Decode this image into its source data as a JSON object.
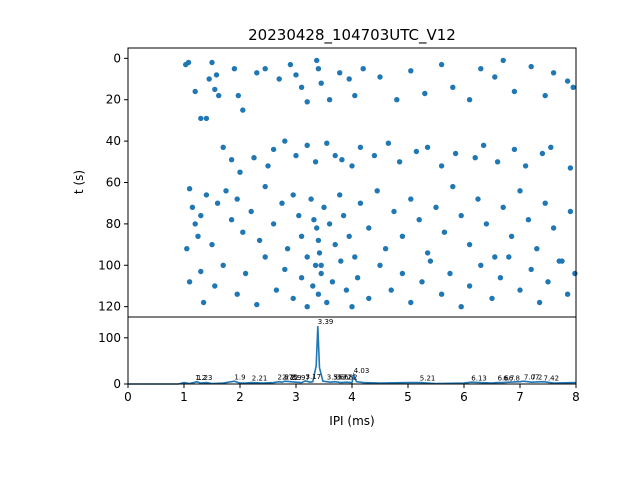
{
  "title": "20230428_104703UTC_V12",
  "accent_color": "#1f77b4",
  "chart_data": [
    {
      "type": "scatter",
      "title": "20230428_104703UTC_V12",
      "xlabel": "",
      "ylabel": "t (s)",
      "xlim": [
        0,
        8
      ],
      "ylim": [
        125,
        -5
      ],
      "y_inverted": true,
      "yticks": [
        "0",
        "20",
        "40",
        "60",
        "80",
        "100",
        "120"
      ],
      "grid": false,
      "points": [
        [
          1.03,
          3
        ],
        [
          1.08,
          2
        ],
        [
          1.2,
          16
        ],
        [
          1.3,
          29
        ],
        [
          1.4,
          29
        ],
        [
          1.45,
          10
        ],
        [
          1.5,
          2
        ],
        [
          1.55,
          15
        ],
        [
          1.58,
          8
        ],
        [
          1.62,
          18
        ],
        [
          1.9,
          5
        ],
        [
          1.97,
          18
        ],
        [
          2.05,
          25
        ],
        [
          2.3,
          7
        ],
        [
          2.45,
          5
        ],
        [
          2.7,
          10
        ],
        [
          2.9,
          3
        ],
        [
          3.0,
          8
        ],
        [
          3.1,
          14
        ],
        [
          3.2,
          21
        ],
        [
          3.37,
          1
        ],
        [
          3.4,
          5
        ],
        [
          3.45,
          12
        ],
        [
          3.6,
          20
        ],
        [
          3.78,
          7
        ],
        [
          3.95,
          10
        ],
        [
          4.05,
          18
        ],
        [
          4.2,
          5
        ],
        [
          4.5,
          9
        ],
        [
          4.8,
          20
        ],
        [
          5.05,
          6
        ],
        [
          5.3,
          17
        ],
        [
          5.6,
          3
        ],
        [
          5.8,
          14
        ],
        [
          6.1,
          20
        ],
        [
          6.3,
          5
        ],
        [
          6.55,
          9
        ],
        [
          6.7,
          1
        ],
        [
          6.9,
          16
        ],
        [
          7.2,
          4
        ],
        [
          7.45,
          18
        ],
        [
          7.6,
          7
        ],
        [
          7.85,
          11
        ],
        [
          7.95,
          14
        ],
        [
          1.7,
          43
        ],
        [
          1.85,
          49
        ],
        [
          2.0,
          55
        ],
        [
          2.25,
          48
        ],
        [
          2.5,
          52
        ],
        [
          2.6,
          44
        ],
        [
          2.8,
          40
        ],
        [
          3.0,
          47
        ],
        [
          3.2,
          42
        ],
        [
          3.35,
          50
        ],
        [
          3.55,
          41
        ],
        [
          3.7,
          47
        ],
        [
          3.82,
          49
        ],
        [
          4.0,
          52
        ],
        [
          4.15,
          43
        ],
        [
          4.4,
          47
        ],
        [
          4.65,
          41
        ],
        [
          4.85,
          50
        ],
        [
          5.15,
          45
        ],
        [
          5.35,
          43
        ],
        [
          5.6,
          52
        ],
        [
          5.85,
          46
        ],
        [
          6.2,
          48
        ],
        [
          6.35,
          42
        ],
        [
          6.6,
          50
        ],
        [
          6.9,
          44
        ],
        [
          7.1,
          52
        ],
        [
          7.4,
          46
        ],
        [
          7.55,
          43
        ],
        [
          7.9,
          53
        ],
        [
          1.1,
          63
        ],
        [
          1.15,
          72
        ],
        [
          1.2,
          80
        ],
        [
          1.25,
          86
        ],
        [
          1.3,
          76
        ],
        [
          1.4,
          66
        ],
        [
          1.5,
          90
        ],
        [
          1.6,
          70
        ],
        [
          1.75,
          64
        ],
        [
          1.85,
          78
        ],
        [
          1.95,
          68
        ],
        [
          2.05,
          84
        ],
        [
          2.2,
          74
        ],
        [
          2.35,
          88
        ],
        [
          2.45,
          62
        ],
        [
          2.6,
          80
        ],
        [
          2.75,
          70
        ],
        [
          2.85,
          92
        ],
        [
          2.95,
          66
        ],
        [
          3.05,
          76
        ],
        [
          3.1,
          86
        ],
        [
          3.2,
          96
        ],
        [
          3.27,
          68
        ],
        [
          3.32,
          78
        ],
        [
          3.37,
          82
        ],
        [
          3.4,
          88
        ],
        [
          3.42,
          94
        ],
        [
          3.45,
          100
        ],
        [
          3.5,
          72
        ],
        [
          3.6,
          80
        ],
        [
          3.7,
          90
        ],
        [
          3.78,
          66
        ],
        [
          3.85,
          76
        ],
        [
          3.95,
          86
        ],
        [
          4.05,
          96
        ],
        [
          4.15,
          70
        ],
        [
          4.3,
          82
        ],
        [
          4.45,
          64
        ],
        [
          4.6,
          92
        ],
        [
          4.75,
          74
        ],
        [
          4.9,
          86
        ],
        [
          5.05,
          68
        ],
        [
          5.2,
          78
        ],
        [
          5.35,
          94
        ],
        [
          5.5,
          72
        ],
        [
          5.65,
          84
        ],
        [
          5.8,
          62
        ],
        [
          5.95,
          76
        ],
        [
          6.1,
          90
        ],
        [
          6.25,
          68
        ],
        [
          6.4,
          80
        ],
        [
          6.55,
          96
        ],
        [
          6.7,
          72
        ],
        [
          6.85,
          86
        ],
        [
          7.0,
          64
        ],
        [
          7.15,
          78
        ],
        [
          7.3,
          92
        ],
        [
          7.45,
          70
        ],
        [
          7.6,
          82
        ],
        [
          7.75,
          98
        ],
        [
          7.9,
          74
        ],
        [
          1.05,
          92
        ],
        [
          1.1,
          108
        ],
        [
          1.3,
          103
        ],
        [
          1.35,
          118
        ],
        [
          1.55,
          110
        ],
        [
          1.7,
          100
        ],
        [
          1.95,
          114
        ],
        [
          2.1,
          104
        ],
        [
          2.3,
          119
        ],
        [
          2.45,
          96
        ],
        [
          2.65,
          112
        ],
        [
          2.8,
          102
        ],
        [
          2.95,
          116
        ],
        [
          3.1,
          106
        ],
        [
          3.2,
          120
        ],
        [
          3.3,
          110
        ],
        [
          3.35,
          100
        ],
        [
          3.4,
          114
        ],
        [
          3.45,
          104
        ],
        [
          3.55,
          118
        ],
        [
          3.65,
          108
        ],
        [
          3.8,
          98
        ],
        [
          3.9,
          112
        ],
        [
          4.0,
          120
        ],
        [
          4.1,
          106
        ],
        [
          4.3,
          116
        ],
        [
          4.5,
          100
        ],
        [
          4.7,
          112
        ],
        [
          4.9,
          104
        ],
        [
          5.05,
          118
        ],
        [
          5.25,
          108
        ],
        [
          5.4,
          98
        ],
        [
          5.6,
          114
        ],
        [
          5.75,
          104
        ],
        [
          5.95,
          120
        ],
        [
          6.1,
          110
        ],
        [
          6.3,
          100
        ],
        [
          6.5,
          116
        ],
        [
          6.65,
          106
        ],
        [
          6.8,
          96
        ],
        [
          7.0,
          112
        ],
        [
          7.2,
          102
        ],
        [
          7.35,
          118
        ],
        [
          7.5,
          108
        ],
        [
          7.7,
          98
        ],
        [
          7.85,
          114
        ],
        [
          7.98,
          104
        ]
      ]
    },
    {
      "type": "line",
      "xlabel": "IPI (ms)",
      "ylabel": "",
      "xlim": [
        0,
        8
      ],
      "ylim": [
        0,
        145
      ],
      "xticks": [
        "0",
        "1",
        "2",
        "3",
        "4",
        "5",
        "6",
        "7",
        "8"
      ],
      "yticks": [
        "0",
        "100"
      ],
      "x": [
        0,
        0.9,
        1.0,
        1.1,
        1.2,
        1.23,
        1.3,
        1.4,
        1.5,
        1.7,
        1.9,
        2.0,
        2.1,
        2.21,
        2.4,
        2.6,
        2.7,
        2.75,
        2.8,
        2.9,
        3.0,
        3.1,
        3.17,
        3.25,
        3.3,
        3.36,
        3.39,
        3.42,
        3.48,
        3.55,
        3.62,
        3.7,
        3.8,
        3.9,
        4.0,
        4.03,
        4.08,
        4.2,
        4.5,
        5.0,
        5.21,
        5.5,
        6.0,
        6.13,
        6.5,
        6.6,
        6.7,
        6.8,
        7.0,
        7.07,
        7.2,
        7.42,
        7.6,
        8.0
      ],
      "y": [
        0,
        0,
        3,
        1,
        4,
        5,
        2,
        3,
        1,
        2,
        6,
        2,
        2,
        3,
        2,
        3,
        5,
        4,
        6,
        5,
        4,
        3,
        7,
        4,
        5,
        40,
        125,
        35,
        6,
        5,
        4,
        5,
        3,
        4,
        3,
        20,
        5,
        3,
        2,
        3,
        3,
        1,
        2,
        4,
        2,
        3,
        3,
        4,
        5,
        6,
        4,
        5,
        2,
        3
      ],
      "annotations": [
        {
          "label": "1.2",
          "x": 1.2,
          "y": 4
        },
        {
          "label": "1.23",
          "x": 1.23,
          "y": 4
        },
        {
          "label": "1.9",
          "x": 1.9,
          "y": 5
        },
        {
          "label": "2.21",
          "x": 2.21,
          "y": 3
        },
        {
          "label": "2.67",
          "x": 2.67,
          "y": 5
        },
        {
          "label": "2.75",
          "x": 2.75,
          "y": 5
        },
        {
          "label": "2.8",
          "x": 2.8,
          "y": 5
        },
        {
          "label": "2.9",
          "x": 2.9,
          "y": 4
        },
        {
          "label": "2.97",
          "x": 2.97,
          "y": 4
        },
        {
          "label": "3.17",
          "x": 3.17,
          "y": 7
        },
        {
          "label": "3.39",
          "x": 3.39,
          "y": 125
        },
        {
          "label": "3.55",
          "x": 3.55,
          "y": 5
        },
        {
          "label": "3.66",
          "x": 3.66,
          "y": 5
        },
        {
          "label": "3.72",
          "x": 3.72,
          "y": 5
        },
        {
          "label": "3.82",
          "x": 3.82,
          "y": 5
        },
        {
          "label": "4.03",
          "x": 4.03,
          "y": 20
        },
        {
          "label": "5.21",
          "x": 5.21,
          "y": 3
        },
        {
          "label": "6.13",
          "x": 6.13,
          "y": 3
        },
        {
          "label": "6.6",
          "x": 6.6,
          "y": 3
        },
        {
          "label": "6.7",
          "x": 6.7,
          "y": 3
        },
        {
          "label": "6.8",
          "x": 6.8,
          "y": 3
        },
        {
          "label": "7.07",
          "x": 7.07,
          "y": 5
        },
        {
          "label": "7.2",
          "x": 7.2,
          "y": 5
        },
        {
          "label": "7.42",
          "x": 7.42,
          "y": 3
        }
      ]
    }
  ]
}
